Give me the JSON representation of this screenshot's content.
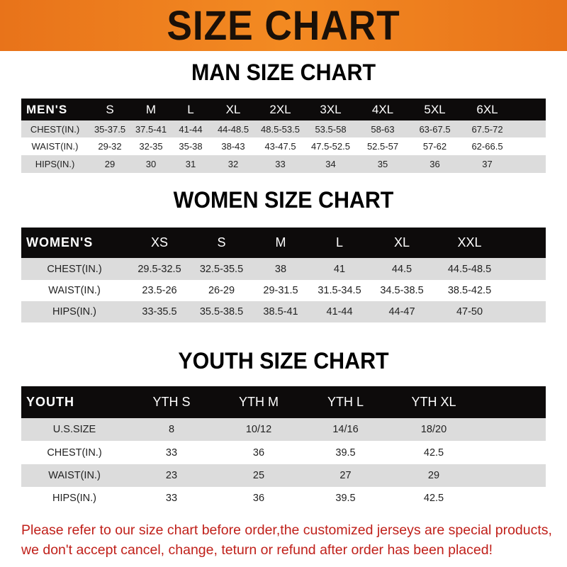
{
  "banner": {
    "title": "SIZE CHART",
    "color": "#f0821f"
  },
  "men": {
    "title": "MAN SIZE CHART",
    "header": [
      "MEN'S",
      "S",
      "M",
      "L",
      "XL",
      "2XL",
      "3XL",
      "4XL",
      "5XL",
      "6XL"
    ],
    "rows": [
      [
        "CHEST(IN.)",
        "35-37.5",
        "37.5-41",
        "41-44",
        "44-48.5",
        "48.5-53.5",
        "53.5-58",
        "58-63",
        "63-67.5",
        "67.5-72"
      ],
      [
        "WAIST(IN.)",
        "29-32",
        "32-35",
        "35-38",
        "38-43",
        "43-47.5",
        "47.5-52.5",
        "52.5-57",
        "57-62",
        "62-66.5"
      ],
      [
        "HIPS(IN.)",
        "29",
        "30",
        "31",
        "32",
        "33",
        "34",
        "35",
        "36",
        "37"
      ]
    ]
  },
  "women": {
    "title": "WOMEN SIZE CHART",
    "header": [
      "WOMEN'S",
      "XS",
      "S",
      "M",
      "L",
      "XL",
      "XXL"
    ],
    "rows": [
      [
        "CHEST(IN.)",
        "29.5-32.5",
        "32.5-35.5",
        "38",
        "41",
        "44.5",
        "44.5-48.5"
      ],
      [
        "WAIST(IN.)",
        "23.5-26",
        "26-29",
        "29-31.5",
        "31.5-34.5",
        "34.5-38.5",
        "38.5-42.5"
      ],
      [
        "HIPS(IN.)",
        "33-35.5",
        "35.5-38.5",
        "38.5-41",
        "41-44",
        "44-47",
        "47-50"
      ]
    ]
  },
  "youth": {
    "title": "YOUTH SIZE CHART",
    "header": [
      "YOUTH",
      "YTH S",
      "YTH M",
      "YTH L",
      "YTH XL"
    ],
    "rows": [
      [
        "U.S.SIZE",
        "8",
        "10/12",
        "14/16",
        "18/20"
      ],
      [
        "CHEST(IN.)",
        "33",
        "36",
        "39.5",
        "42.5"
      ],
      [
        "WAIST(IN.)",
        "23",
        "25",
        "27",
        "29"
      ],
      [
        "HIPS(IN.)",
        "33",
        "36",
        "39.5",
        "42.5"
      ]
    ]
  },
  "note": {
    "line1": "Please refer to our size chart before order,the customized jerseys are special products,",
    "line2": "we don't accept cancel, change, teturn or refund after order has been placed!",
    "color": "#c0201a"
  }
}
